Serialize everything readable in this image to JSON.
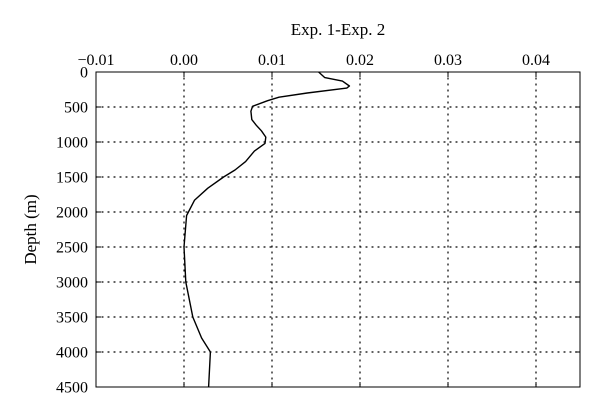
{
  "chart_data": {
    "type": "line",
    "xlabel": "Exp. 1-Exp. 2",
    "ylabel": "Depth (m)",
    "x_axis_position": "top",
    "y_axis_inverted": true,
    "xlim": [
      -0.01,
      0.045
    ],
    "ylim": [
      0,
      4500
    ],
    "x_ticks": [
      -0.01,
      0.0,
      0.01,
      0.02,
      0.03,
      0.04
    ],
    "x_tick_labels": [
      "−0.01",
      "0.00",
      "0.01",
      "0.02",
      "0.03",
      "0.04"
    ],
    "y_ticks": [
      0,
      500,
      1000,
      1500,
      2000,
      2500,
      3000,
      3500,
      4000,
      4500
    ],
    "y_tick_labels": [
      "0",
      "500",
      "1000",
      "1500",
      "2000",
      "2500",
      "3000",
      "3500",
      "4000",
      "4500"
    ],
    "grid": "dotted",
    "series": [
      {
        "color": "#000000",
        "x": [
          0.0153,
          0.016,
          0.018,
          0.0188,
          0.0185,
          0.014,
          0.0108,
          0.0095,
          0.0078,
          0.0076,
          0.0077,
          0.0082,
          0.0088,
          0.0093,
          0.0092,
          0.008,
          0.007,
          0.0058,
          0.0045,
          0.0027,
          0.0012,
          0.0003,
          0.0,
          0.0002,
          0.001,
          0.002,
          0.003,
          0.0028
        ],
        "y": [
          0,
          80,
          130,
          200,
          230,
          300,
          360,
          410,
          490,
          560,
          680,
          760,
          840,
          930,
          1020,
          1130,
          1280,
          1400,
          1500,
          1660,
          1830,
          2050,
          2500,
          3000,
          3500,
          3800,
          4000,
          4500
        ]
      }
    ]
  }
}
